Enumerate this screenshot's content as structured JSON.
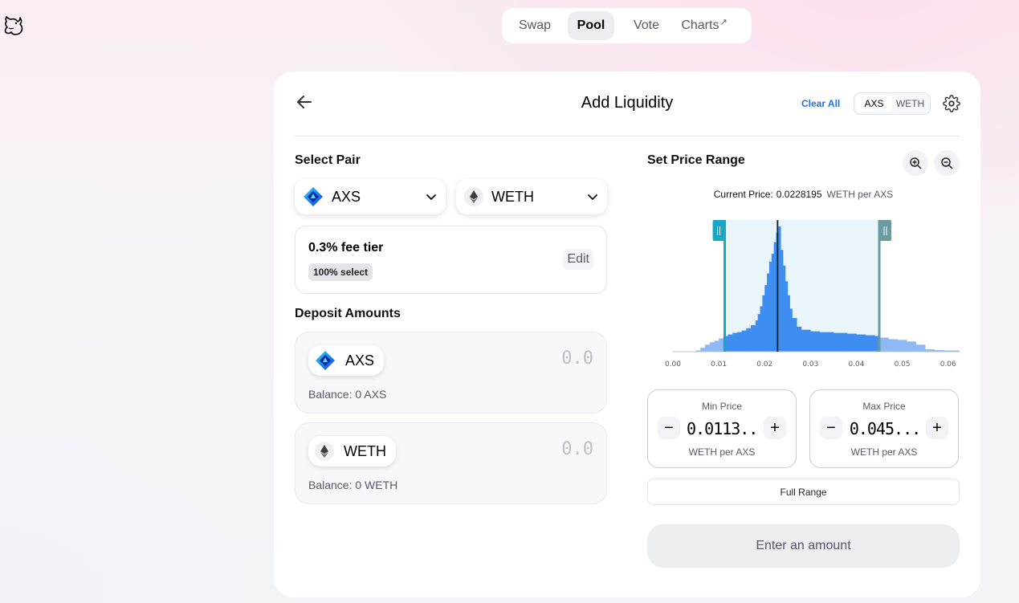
{
  "nav": {
    "items": [
      {
        "label": "Swap",
        "active": false
      },
      {
        "label": "Pool",
        "active": true
      },
      {
        "label": "Vote",
        "active": false
      },
      {
        "label": "Charts",
        "active": false,
        "external": true
      }
    ]
  },
  "header": {
    "title": "Add Liquidity",
    "clear_all": "Clear All",
    "toggle": [
      "AXS",
      "WETH"
    ]
  },
  "select_pair": {
    "label": "Select Pair",
    "token_a": "AXS",
    "token_b": "WETH"
  },
  "fee": {
    "title": "0.3% fee tier",
    "badge": "100% select",
    "edit": "Edit"
  },
  "deposit": {
    "label": "Deposit Amounts",
    "token_a": {
      "symbol": "AXS",
      "placeholder": "0.0",
      "balance": "Balance: 0 AXS"
    },
    "token_b": {
      "symbol": "WETH",
      "placeholder": "0.0",
      "balance": "Balance: 0 WETH"
    }
  },
  "price_range": {
    "label": "Set Price Range",
    "current_price_label": "Current Price:",
    "current_price_value": "0.0228195",
    "current_price_unit": "WETH per AXS",
    "min": {
      "title": "Min Price",
      "value": "0.0113...",
      "unit": "WETH per AXS"
    },
    "max": {
      "title": "Max Price",
      "value": "0.045...",
      "unit": "WETH per AXS"
    },
    "full_range": "Full Range",
    "submit": "Enter an amount"
  },
  "chart_data": {
    "type": "area",
    "x_ticks": [
      "0.00",
      "0.01",
      "0.02",
      "0.03",
      "0.04",
      "0.05",
      "0.06"
    ],
    "xlim": [
      0.0,
      0.0625
    ],
    "current_price": 0.0228195,
    "range_min": 0.0113,
    "range_max": 0.045,
    "liquidity": [
      [
        0.0,
        0.0
      ],
      [
        0.003,
        0.5
      ],
      [
        0.005,
        1.5
      ],
      [
        0.006,
        5
      ],
      [
        0.007,
        9
      ],
      [
        0.008,
        12
      ],
      [
        0.009,
        14
      ],
      [
        0.01,
        17
      ],
      [
        0.011,
        20
      ],
      [
        0.012,
        22
      ],
      [
        0.013,
        24
      ],
      [
        0.014,
        25
      ],
      [
        0.015,
        27
      ],
      [
        0.016,
        30
      ],
      [
        0.017,
        34
      ],
      [
        0.018,
        40
      ],
      [
        0.0185,
        48
      ],
      [
        0.019,
        58
      ],
      [
        0.0195,
        72
      ],
      [
        0.02,
        85
      ],
      [
        0.0205,
        100
      ],
      [
        0.021,
        115
      ],
      [
        0.0215,
        125
      ],
      [
        0.022,
        140
      ],
      [
        0.0225,
        152
      ],
      [
        0.023,
        160
      ],
      [
        0.0235,
        130
      ],
      [
        0.024,
        110
      ],
      [
        0.0245,
        90
      ],
      [
        0.025,
        72
      ],
      [
        0.0255,
        55
      ],
      [
        0.026,
        43
      ],
      [
        0.027,
        32
      ],
      [
        0.028,
        28
      ],
      [
        0.03,
        26
      ],
      [
        0.032,
        25
      ],
      [
        0.035,
        24
      ],
      [
        0.038,
        23
      ],
      [
        0.04,
        22
      ],
      [
        0.042,
        21
      ],
      [
        0.044,
        20
      ],
      [
        0.045,
        18
      ],
      [
        0.047,
        16
      ],
      [
        0.049,
        15
      ],
      [
        0.051,
        13
      ],
      [
        0.053,
        9
      ],
      [
        0.055,
        3
      ],
      [
        0.057,
        2
      ],
      [
        0.059,
        1.5
      ],
      [
        0.0625,
        1
      ]
    ],
    "colors": {
      "in_range": "#3d8ef0",
      "out_range": "#8fb8f5",
      "min_handle": "#1ba6c4",
      "max_handle": "#6a9ba0",
      "band": "#e9f5f9"
    }
  }
}
